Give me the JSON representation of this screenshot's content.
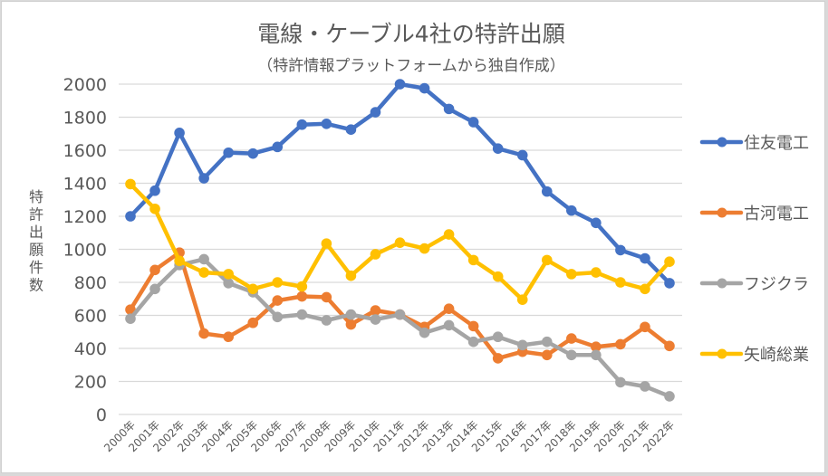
{
  "chart_data": {
    "type": "line",
    "title": "電線・ケーブル4社の特許出願",
    "subtitle": "（特許情報プラットフォームから独自作成）",
    "xlabel": "",
    "ylabel": "特許出願件数",
    "ylim": [
      0,
      2000
    ],
    "yticks": [
      "0",
      "200",
      "400",
      "600",
      "800",
      "1000",
      "1200",
      "1400",
      "1600",
      "1800",
      "2000"
    ],
    "grid": true,
    "legend_position": "right",
    "categories": [
      "2000年",
      "2001年",
      "2002年",
      "2003年",
      "2004年",
      "2005年",
      "2006年",
      "2007年",
      "2008年",
      "2009年",
      "2010年",
      "2011年",
      "2012年",
      "2013年",
      "2014年",
      "2015年",
      "2016年",
      "2017年",
      "2018年",
      "2019年",
      "2020年",
      "2021年",
      "2022年"
    ],
    "series": [
      {
        "name": "住友電工",
        "color": "#4472c4",
        "values": [
          1200,
          1355,
          1705,
          1430,
          1585,
          1580,
          1620,
          1755,
          1760,
          1725,
          1830,
          2000,
          1975,
          1850,
          1770,
          1610,
          1570,
          1350,
          1235,
          1160,
          995,
          945,
          795
        ]
      },
      {
        "name": "古河電工",
        "color": "#ed7d31",
        "values": [
          635,
          875,
          980,
          490,
          470,
          555,
          690,
          715,
          710,
          545,
          630,
          605,
          530,
          640,
          535,
          340,
          380,
          360,
          460,
          410,
          425,
          530,
          415
        ]
      },
      {
        "name": "フジクラ",
        "color": "#a5a5a5",
        "values": [
          580,
          760,
          905,
          940,
          795,
          740,
          590,
          605,
          570,
          605,
          575,
          605,
          495,
          540,
          440,
          470,
          420,
          440,
          360,
          360,
          195,
          170,
          110
        ]
      },
      {
        "name": "矢崎総業",
        "color": "#ffc000",
        "values": [
          1395,
          1245,
          930,
          860,
          850,
          760,
          800,
          775,
          1035,
          840,
          970,
          1040,
          1005,
          1090,
          935,
          835,
          695,
          935,
          850,
          860,
          800,
          760,
          925
        ]
      }
    ]
  }
}
